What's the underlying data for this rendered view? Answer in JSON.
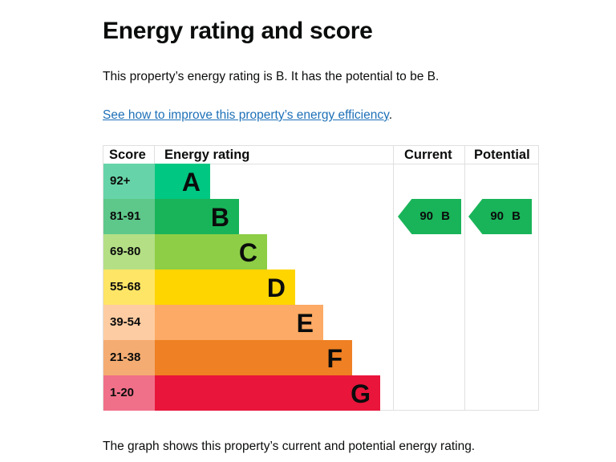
{
  "title": "Energy rating and score",
  "summary": "This property’s energy rating is B. It has the potential to be B.",
  "link": "See how to improve this property’s energy efficiency",
  "link_suffix": ".",
  "table": {
    "headers": {
      "score": "Score",
      "rating": "Energy rating",
      "current": "Current",
      "potential": "Potential"
    },
    "bands": [
      {
        "score": "92+",
        "letter": "A",
        "color": "#00c781",
        "tint": "#66d4a8"
      },
      {
        "score": "81-91",
        "letter": "B",
        "color": "#19b459",
        "tint": "#5ec88a"
      },
      {
        "score": "69-80",
        "letter": "C",
        "color": "#8dce46",
        "tint": "#b4df85"
      },
      {
        "score": "55-68",
        "letter": "D",
        "color": "#ffd500",
        "tint": "#ffe566"
      },
      {
        "score": "39-54",
        "letter": "E",
        "color": "#fcaa65",
        "tint": "#fdcca2"
      },
      {
        "score": "21-38",
        "letter": "F",
        "color": "#ef8023",
        "tint": "#f4ac72"
      },
      {
        "score": "1-20",
        "letter": "G",
        "color": "#e9153b",
        "tint": "#f07089"
      }
    ],
    "current": {
      "label": "90 B",
      "band": "B"
    },
    "potential": {
      "label": "90 B",
      "band": "B"
    }
  },
  "footer": "The graph shows this property’s current and potential energy rating."
}
